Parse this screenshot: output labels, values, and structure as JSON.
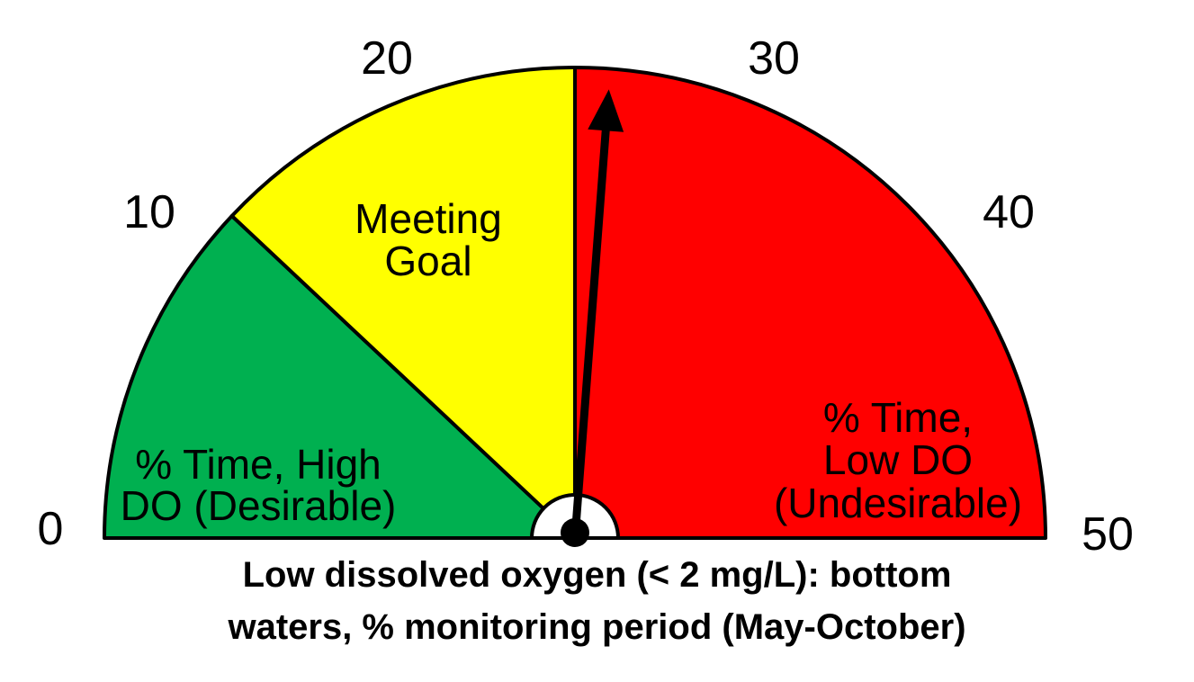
{
  "chart_data": {
    "type": "gauge",
    "title": "",
    "caption_lines": [
      "Low dissolved oxygen (< 2 mg/L): bottom",
      "waters, % monitoring period (May-October)"
    ],
    "range": [
      0,
      50
    ],
    "ticks": [
      "0",
      "10",
      "20",
      "30",
      "40",
      "50"
    ],
    "tick_values": [
      0,
      10,
      20,
      30,
      40,
      50
    ],
    "zones": [
      {
        "from": 0,
        "to": 12,
        "color": "#00b050",
        "label_lines": [
          "% Time, High",
          "DO (Desirable)"
        ]
      },
      {
        "from": 12,
        "to": 25,
        "color": "#ffff00",
        "label_lines": [
          "Meeting",
          "Goal"
        ]
      },
      {
        "from": 25,
        "to": 50,
        "color": "#ff0000",
        "label_lines": [
          "% Time,",
          "Low DO",
          "(Undesirable)"
        ]
      }
    ],
    "needle_value": 26.2,
    "needle_color": "#000000"
  }
}
